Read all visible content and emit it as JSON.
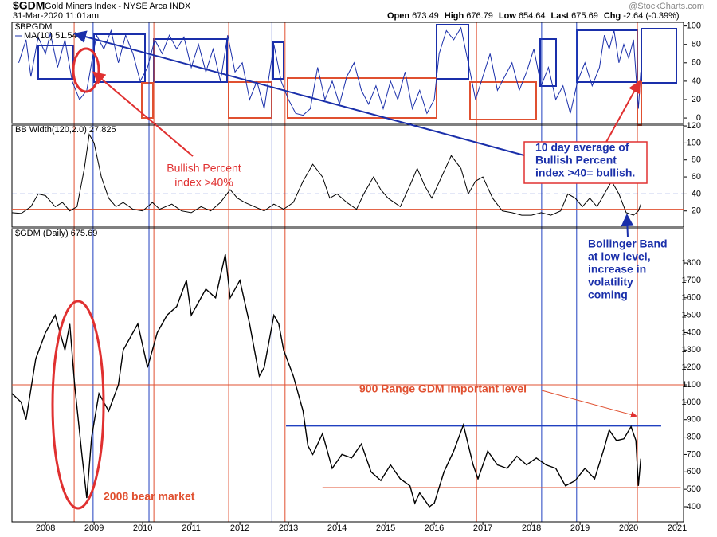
{
  "header": {
    "title": "$GDM",
    "subtitle": "Gold Miners Index - NYSE Arca INDX",
    "date": "31-Mar-2020 11:01am",
    "quote": [
      {
        "label": "Open",
        "value": 673.49
      },
      {
        "label": "High",
        "value": 676.79
      },
      {
        "label": "Low",
        "value": 654.64
      },
      {
        "label": "Last",
        "value": 675.69
      },
      {
        "label": "Chg",
        "value": "-2.64 (-0.39%)"
      }
    ],
    "watermark": "@StockCharts.com"
  },
  "chart_data": [
    {
      "type": "line",
      "title": "$BPGDM",
      "xlim": [
        2007.31,
        2021.13
      ],
      "ylim": [
        -6,
        104
      ],
      "yticks": [
        0,
        20,
        40,
        60,
        80,
        100
      ],
      "x": [
        2007.45,
        2007.6,
        2007.7,
        2007.85,
        2008.0,
        2008.1,
        2008.25,
        2008.4,
        2008.55,
        2008.7,
        2008.85,
        2008.95,
        2009.05,
        2009.2,
        2009.35,
        2009.5,
        2009.65,
        2009.8,
        2009.95,
        2010.1,
        2010.25,
        2010.4,
        2010.55,
        2010.7,
        2010.85,
        2011.0,
        2011.15,
        2011.3,
        2011.45,
        2011.6,
        2011.75,
        2011.9,
        2012.05,
        2012.2,
        2012.35,
        2012.5,
        2012.7,
        2012.85,
        2013.0,
        2013.15,
        2013.3,
        2013.45,
        2013.6,
        2013.75,
        2013.9,
        2014.05,
        2014.2,
        2014.35,
        2014.5,
        2014.65,
        2014.8,
        2014.95,
        2015.1,
        2015.25,
        2015.4,
        2015.55,
        2015.7,
        2015.85,
        2016.0,
        2016.1,
        2016.25,
        2016.4,
        2016.55,
        2016.7,
        2016.85,
        2017.0,
        2017.15,
        2017.3,
        2017.45,
        2017.6,
        2017.75,
        2017.9,
        2018.05,
        2018.2,
        2018.35,
        2018.5,
        2018.65,
        2018.8,
        2018.95,
        2019.1,
        2019.25,
        2019.4,
        2019.5,
        2019.6,
        2019.7,
        2019.8,
        2019.9,
        2020.0,
        2020.1,
        2020.2,
        2020.25
      ],
      "series": [
        {
          "name": "MA(10) 51.54",
          "color": "#1a2faa",
          "values": [
            60,
            85,
            45,
            88,
            70,
            92,
            55,
            85,
            40,
            20,
            30,
            60,
            90,
            75,
            95,
            60,
            90,
            70,
            40,
            55,
            85,
            70,
            90,
            75,
            88,
            55,
            80,
            50,
            75,
            40,
            90,
            50,
            60,
            20,
            40,
            10,
            80,
            40,
            20,
            5,
            3,
            10,
            55,
            20,
            40,
            15,
            45,
            60,
            30,
            15,
            35,
            10,
            40,
            20,
            50,
            10,
            30,
            5,
            20,
            70,
            95,
            85,
            98,
            60,
            20,
            45,
            70,
            30,
            45,
            60,
            30,
            50,
            75,
            35,
            55,
            20,
            35,
            5,
            40,
            60,
            35,
            55,
            90,
            75,
            95,
            60,
            80,
            65,
            85,
            10,
            50
          ]
        }
      ]
    },
    {
      "type": "line",
      "title": "BB Width(120,2.0) 27.825",
      "xlim": [
        2007.31,
        2021.13
      ],
      "ylim": [
        1,
        121
      ],
      "yticks": [
        20,
        40,
        60,
        80,
        100,
        120
      ],
      "hlines": [
        {
          "value": 40,
          "color": "#2040c0",
          "dashed": true
        },
        {
          "value": 22,
          "color": "#e05030",
          "dashed": false
        }
      ],
      "x": [
        2007.31,
        2007.5,
        2007.7,
        2007.85,
        2008.0,
        2008.2,
        2008.35,
        2008.5,
        2008.65,
        2008.8,
        2008.9,
        2009.0,
        2009.15,
        2009.3,
        2009.45,
        2009.6,
        2009.8,
        2010.0,
        2010.2,
        2010.35,
        2010.6,
        2010.8,
        2011.0,
        2011.2,
        2011.4,
        2011.6,
        2011.8,
        2011.95,
        2012.1,
        2012.3,
        2012.5,
        2012.7,
        2012.9,
        2013.1,
        2013.3,
        2013.5,
        2013.7,
        2013.85,
        2014.0,
        2014.2,
        2014.4,
        2014.55,
        2014.75,
        2014.9,
        2015.05,
        2015.3,
        2015.5,
        2015.65,
        2015.8,
        2015.95,
        2016.15,
        2016.35,
        2016.55,
        2016.7,
        2016.85,
        2017.0,
        2017.2,
        2017.4,
        2017.6,
        2017.8,
        2018.0,
        2018.2,
        2018.4,
        2018.6,
        2018.75,
        2018.9,
        2019.05,
        2019.2,
        2019.35,
        2019.5,
        2019.65,
        2019.8,
        2019.95,
        2020.1,
        2020.2,
        2020.25
      ],
      "series": [
        {
          "name": "BB Width",
          "color": "#000000",
          "values": [
            18,
            17,
            25,
            40,
            38,
            25,
            30,
            20,
            25,
            70,
            110,
            100,
            60,
            35,
            25,
            30,
            22,
            20,
            30,
            22,
            28,
            20,
            18,
            25,
            20,
            30,
            45,
            35,
            30,
            25,
            20,
            28,
            22,
            30,
            55,
            75,
            60,
            35,
            40,
            30,
            22,
            40,
            60,
            45,
            35,
            25,
            50,
            70,
            50,
            35,
            60,
            85,
            70,
            40,
            55,
            60,
            35,
            20,
            18,
            15,
            15,
            18,
            15,
            20,
            40,
            35,
            25,
            35,
            25,
            40,
            55,
            40,
            18,
            15,
            20,
            27.825
          ]
        }
      ]
    },
    {
      "type": "line",
      "title": "$GDM (Daily) 675.69",
      "xlim": [
        2007.31,
        2021.13
      ],
      "ylim": [
        313,
        1997
      ],
      "yticks": [
        400,
        500,
        600,
        700,
        800,
        900,
        1000,
        1100,
        1200,
        1300,
        1400,
        1500,
        1600,
        1700,
        1800
      ],
      "xticks": [
        2008,
        2009,
        2010,
        2011,
        2012,
        2013,
        2014,
        2015,
        2016,
        2017,
        2018,
        2019,
        2020,
        2021
      ],
      "hlines": [
        {
          "value": 1100,
          "color": "#e05030",
          "dashed": false
        },
        {
          "value": 865,
          "color": "#2040c0",
          "dashed": false,
          "from": 2012.95,
          "to": 2020.67
        },
        {
          "value": 510,
          "color": "#e05030",
          "dashed": false,
          "from": 2013.7,
          "to": 2021.07
        }
      ],
      "x": [
        2007.31,
        2007.5,
        2007.6,
        2007.8,
        2008.0,
        2008.2,
        2008.4,
        2008.5,
        2008.6,
        2008.75,
        2008.85,
        2008.95,
        2009.1,
        2009.3,
        2009.5,
        2009.6,
        2009.9,
        2010.1,
        2010.3,
        2010.5,
        2010.7,
        2010.9,
        2011.0,
        2011.3,
        2011.5,
        2011.7,
        2011.8,
        2012.0,
        2012.2,
        2012.4,
        2012.5,
        2012.7,
        2012.8,
        2012.9,
        2013.1,
        2013.3,
        2013.4,
        2013.5,
        2013.7,
        2013.9,
        2014.1,
        2014.3,
        2014.5,
        2014.7,
        2014.9,
        2015.1,
        2015.3,
        2015.5,
        2015.6,
        2015.7,
        2015.9,
        2016.0,
        2016.2,
        2016.4,
        2016.6,
        2016.8,
        2016.9,
        2017.1,
        2017.3,
        2017.5,
        2017.7,
        2017.9,
        2018.1,
        2018.3,
        2018.5,
        2018.7,
        2018.9,
        2019.1,
        2019.3,
        2019.5,
        2019.6,
        2019.75,
        2019.9,
        2020.05,
        2020.15,
        2020.2,
        2020.25
      ],
      "series": [
        {
          "name": "$GDM",
          "color": "#000000",
          "values": [
            1050,
            1000,
            900,
            1250,
            1400,
            1500,
            1300,
            1450,
            1100,
            700,
            450,
            800,
            1050,
            950,
            1100,
            1300,
            1450,
            1200,
            1400,
            1500,
            1550,
            1700,
            1500,
            1650,
            1600,
            1850,
            1600,
            1700,
            1450,
            1150,
            1200,
            1500,
            1450,
            1300,
            1150,
            950,
            750,
            700,
            820,
            620,
            700,
            680,
            760,
            600,
            550,
            640,
            560,
            520,
            420,
            480,
            400,
            420,
            600,
            720,
            870,
            640,
            560,
            720,
            640,
            620,
            690,
            640,
            680,
            640,
            620,
            520,
            550,
            620,
            560,
            740,
            840,
            780,
            790,
            860,
            780,
            520,
            675.69
          ]
        }
      ]
    }
  ],
  "event_lines": [
    {
      "x": 2008.59,
      "color": "#e05030"
    },
    {
      "x": 2008.98,
      "color": "#2040c0"
    },
    {
      "x": 2010.13,
      "color": "#2040c0"
    },
    {
      "x": 2010.23,
      "color": "#e05030"
    },
    {
      "x": 2011.77,
      "color": "#e05030"
    },
    {
      "x": 2012.66,
      "color": "#2040c0"
    },
    {
      "x": 2012.93,
      "color": "#e05030"
    },
    {
      "x": 2016.87,
      "color": "#e05030"
    },
    {
      "x": 2018.21,
      "color": "#2040c0"
    },
    {
      "x": 2018.93,
      "color": "#2040c0"
    },
    {
      "x": 2020.18,
      "color": "#e05030"
    }
  ],
  "annotations": [
    {
      "lines": [
        "Bullish Percent",
        "index >40%"
      ],
      "color": "#e03030"
    },
    {
      "lines": [
        "10 day average of",
        "Bullish Percent",
        "index >40= bullish."
      ],
      "color": "#1a2faa"
    },
    {
      "lines": [
        "Bollinger Band",
        "at low level,",
        "increase in",
        "volatility",
        "coming"
      ],
      "color": "#1a2faa"
    },
    {
      "lines": [
        "900 Range GDM important level"
      ],
      "color": "#e05030"
    },
    {
      "lines": [
        "2008 bear market"
      ],
      "color": "#e05030"
    }
  ]
}
